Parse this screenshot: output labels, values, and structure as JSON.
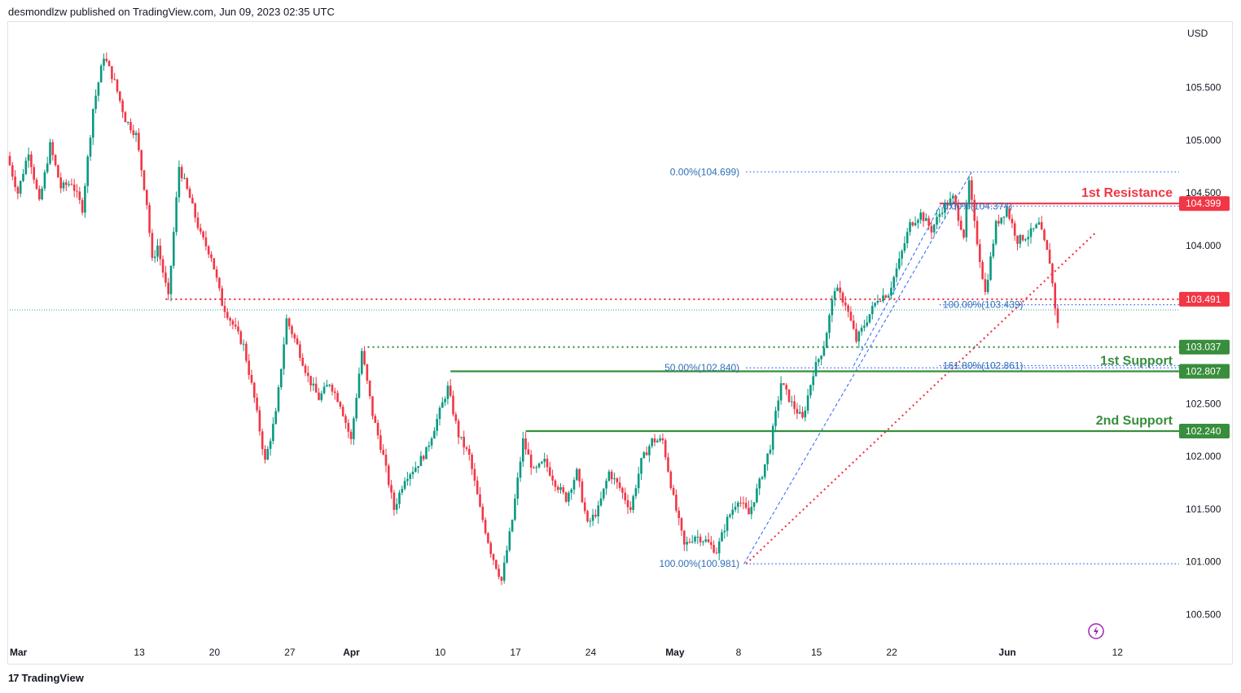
{
  "header": {
    "published_text": "desmondlzw published on TradingView.com, Jun 09, 2023 02:35 UTC"
  },
  "footer": {
    "logo_mark": "17",
    "logo_text": "TradingView"
  },
  "colors": {
    "up": "#089981",
    "down": "#f23645",
    "resistance": "#f23645",
    "support": "#388e3c",
    "fib": "#2962ff",
    "fib_text": "#2e6fb8",
    "trend": "#f23645"
  },
  "chart_data": {
    "type": "candlestick",
    "currency_label": "USD",
    "y_ticks": [
      "105.500",
      "105.000",
      "104.500",
      "104.000",
      "102.500",
      "102.000",
      "101.500",
      "101.000",
      "100.500"
    ],
    "y_tick_values": [
      105.5,
      105.0,
      104.5,
      104.0,
      102.5,
      102.0,
      101.5,
      101.0,
      100.5
    ],
    "x_ticks": [
      {
        "label": "Mar",
        "day": 0
      },
      {
        "label": "13",
        "day": 12
      },
      {
        "label": "20",
        "day": 19
      },
      {
        "label": "27",
        "day": 26
      },
      {
        "label": "Apr",
        "day": 31
      },
      {
        "label": "10",
        "day": 40
      },
      {
        "label": "17",
        "day": 47
      },
      {
        "label": "24",
        "day": 54
      },
      {
        "label": "May",
        "day": 61
      },
      {
        "label": "8",
        "day": 68
      },
      {
        "label": "15",
        "day": 75
      },
      {
        "label": "22",
        "day": 82
      },
      {
        "label": "Jun",
        "day": 92
      },
      {
        "label": "12",
        "day": 103
      }
    ],
    "price_path": [
      [
        0,
        104.85
      ],
      [
        1,
        104.5
      ],
      [
        2,
        104.9
      ],
      [
        3,
        104.4
      ],
      [
        4,
        104.95
      ],
      [
        5,
        104.55
      ],
      [
        6,
        104.6
      ],
      [
        7,
        104.35
      ],
      [
        8,
        105.3
      ],
      [
        9,
        105.8
      ],
      [
        10,
        105.55
      ],
      [
        11,
        105.2
      ],
      [
        12,
        105.05
      ],
      [
        13,
        104.4
      ],
      [
        13.5,
        103.85
      ],
      [
        14,
        104.0
      ],
      [
        15,
        103.5
      ],
      [
        16,
        104.75
      ],
      [
        17,
        104.45
      ],
      [
        18,
        104.1
      ],
      [
        19,
        103.9
      ],
      [
        20,
        103.45
      ],
      [
        21,
        103.25
      ],
      [
        22,
        103.05
      ],
      [
        23,
        102.55
      ],
      [
        24,
        101.95
      ],
      [
        25,
        102.4
      ],
      [
        26,
        103.3
      ],
      [
        27,
        103.05
      ],
      [
        28,
        102.75
      ],
      [
        29,
        102.55
      ],
      [
        30,
        102.7
      ],
      [
        31,
        102.5
      ],
      [
        32,
        102.15
      ],
      [
        33,
        103.0
      ],
      [
        34,
        102.4
      ],
      [
        35,
        102.0
      ],
      [
        36,
        101.5
      ],
      [
        37,
        101.8
      ],
      [
        38,
        101.9
      ],
      [
        39,
        102.05
      ],
      [
        40,
        102.35
      ],
      [
        41,
        102.65
      ],
      [
        42,
        102.2
      ],
      [
        43,
        102.0
      ],
      [
        44,
        101.5
      ],
      [
        45,
        101.1
      ],
      [
        46,
        100.82
      ],
      [
        47,
        101.4
      ],
      [
        48,
        102.15
      ],
      [
        49,
        101.85
      ],
      [
        50,
        101.95
      ],
      [
        51,
        101.75
      ],
      [
        52,
        101.6
      ],
      [
        53,
        101.85
      ],
      [
        54,
        101.35
      ],
      [
        55,
        101.5
      ],
      [
        56,
        101.85
      ],
      [
        57,
        101.7
      ],
      [
        58,
        101.5
      ],
      [
        59,
        101.95
      ],
      [
        60,
        102.15
      ],
      [
        61,
        102.15
      ],
      [
        62,
        101.6
      ],
      [
        63,
        101.15
      ],
      [
        64,
        101.25
      ],
      [
        65,
        101.2
      ],
      [
        66,
        101.1
      ],
      [
        67,
        101.4
      ],
      [
        68,
        101.6
      ],
      [
        69,
        101.45
      ],
      [
        70,
        101.75
      ],
      [
        71,
        102.1
      ],
      [
        72,
        102.7
      ],
      [
        73,
        102.5
      ],
      [
        74,
        102.35
      ],
      [
        75,
        102.8
      ],
      [
        76,
        103.05
      ],
      [
        77,
        103.6
      ],
      [
        78,
        103.45
      ],
      [
        79,
        103.1
      ],
      [
        80,
        103.3
      ],
      [
        81,
        103.5
      ],
      [
        82,
        103.55
      ],
      [
        83,
        103.85
      ],
      [
        84,
        104.2
      ],
      [
        85,
        104.3
      ],
      [
        86,
        104.15
      ],
      [
        87,
        104.35
      ],
      [
        88,
        104.45
      ],
      [
        89,
        104.1
      ],
      [
        89.5,
        104.6
      ],
      [
        90,
        104.2
      ],
      [
        91,
        103.55
      ],
      [
        92,
        104.2
      ],
      [
        93,
        104.35
      ],
      [
        94,
        104.05
      ],
      [
        95,
        104.1
      ],
      [
        96,
        104.2
      ],
      [
        97,
        103.85
      ],
      [
        97.7,
        103.25
      ]
    ],
    "levels": [
      {
        "name": "1st Resistance",
        "price": 104.399,
        "label": "104.399",
        "color": "resistance",
        "style": "solid",
        "start_day": 86.5
      },
      {
        "name": "",
        "price": 103.491,
        "label": "103.491",
        "color": "resistance",
        "style": "dotted",
        "start_day": 14.5
      },
      {
        "name": "",
        "price": 103.037,
        "label": "103.037",
        "color": "support",
        "style": "dotted",
        "start_day": 33.3
      },
      {
        "name": "1st Support",
        "price": 102.807,
        "label": "102.807",
        "color": "support",
        "style": "solid",
        "start_day": 41.0
      },
      {
        "name": "2nd Support",
        "price": 102.24,
        "label": "102.240",
        "color": "support",
        "style": "solid",
        "start_day": 48.0
      }
    ],
    "fib_levels": [
      {
        "label": "0.00%(104.699)",
        "price": 104.699,
        "start_day": 68.5
      },
      {
        "label": "50.00%(102.840)",
        "price": 102.84,
        "start_day": 68.5
      },
      {
        "label": "100.00%(100.981)",
        "price": 100.981,
        "start_day": 68.5
      },
      {
        "label": "0.00%(104.374)",
        "price": 104.374,
        "start_day": 86.5
      },
      {
        "label": "100.00%(103.439)",
        "price": 103.439,
        "start_day": 86.5
      },
      {
        "label": "161.80%(102.861)",
        "price": 102.861,
        "start_day": 86.5
      }
    ],
    "trendline": {
      "start_day": 68.5,
      "start_price": 100.981,
      "end_day": 101,
      "end_price": 104.12
    },
    "fib_leg_1": {
      "start_day": 68.3,
      "start_price": 100.98,
      "end_day": 89.5,
      "end_price": 104.7
    },
    "fib_leg_2": {
      "start_day": 78.5,
      "start_price": 102.86,
      "end_day": 86.5,
      "end_price": 104.37
    },
    "current_price_line": 103.39
  }
}
